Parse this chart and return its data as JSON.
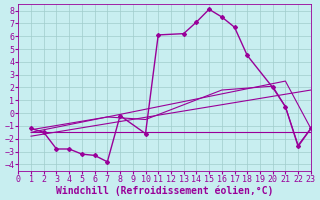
{
  "bg_color": "#c8eef0",
  "line_color": "#990099",
  "grid_color": "#a0cccc",
  "xlabel": "Windchill (Refroidissement éolien,°C)",
  "xlabel_fontsize": 7.0,
  "tick_fontsize": 6.0,
  "xlim": [
    0,
    23
  ],
  "ylim": [
    -4.5,
    8.5
  ],
  "yticks": [
    -4,
    -3,
    -2,
    -1,
    0,
    1,
    2,
    3,
    4,
    5,
    6,
    7,
    8
  ],
  "xticks": [
    0,
    1,
    2,
    3,
    4,
    5,
    6,
    7,
    8,
    9,
    10,
    11,
    12,
    13,
    14,
    15,
    16,
    17,
    18,
    19,
    20,
    21,
    22,
    23
  ],
  "curve_x": [
    1,
    2,
    3,
    4,
    5,
    6,
    7,
    8,
    10,
    11,
    13,
    14,
    15,
    16,
    17,
    18,
    20,
    21,
    22,
    23
  ],
  "curve_y": [
    -1.2,
    -1.5,
    -2.8,
    -2.8,
    -3.2,
    -3.3,
    -3.8,
    -0.2,
    -1.6,
    6.1,
    6.2,
    7.1,
    8.1,
    7.5,
    6.7,
    4.5,
    2.0,
    0.5,
    -2.6,
    -1.2
  ],
  "line1_x": [
    1,
    23
  ],
  "line1_y": [
    -1.5,
    -1.5
  ],
  "line2_x": [
    1,
    7,
    10,
    16,
    20,
    21,
    22,
    23
  ],
  "line2_y": [
    -1.3,
    -0.3,
    -0.5,
    1.8,
    2.1,
    0.5,
    -2.5,
    -1.2
  ],
  "line3_x": [
    1,
    23
  ],
  "line3_y": [
    -1.8,
    1.8
  ],
  "line4_x": [
    1,
    21,
    23
  ],
  "line4_y": [
    -1.5,
    2.5,
    -1.2
  ]
}
